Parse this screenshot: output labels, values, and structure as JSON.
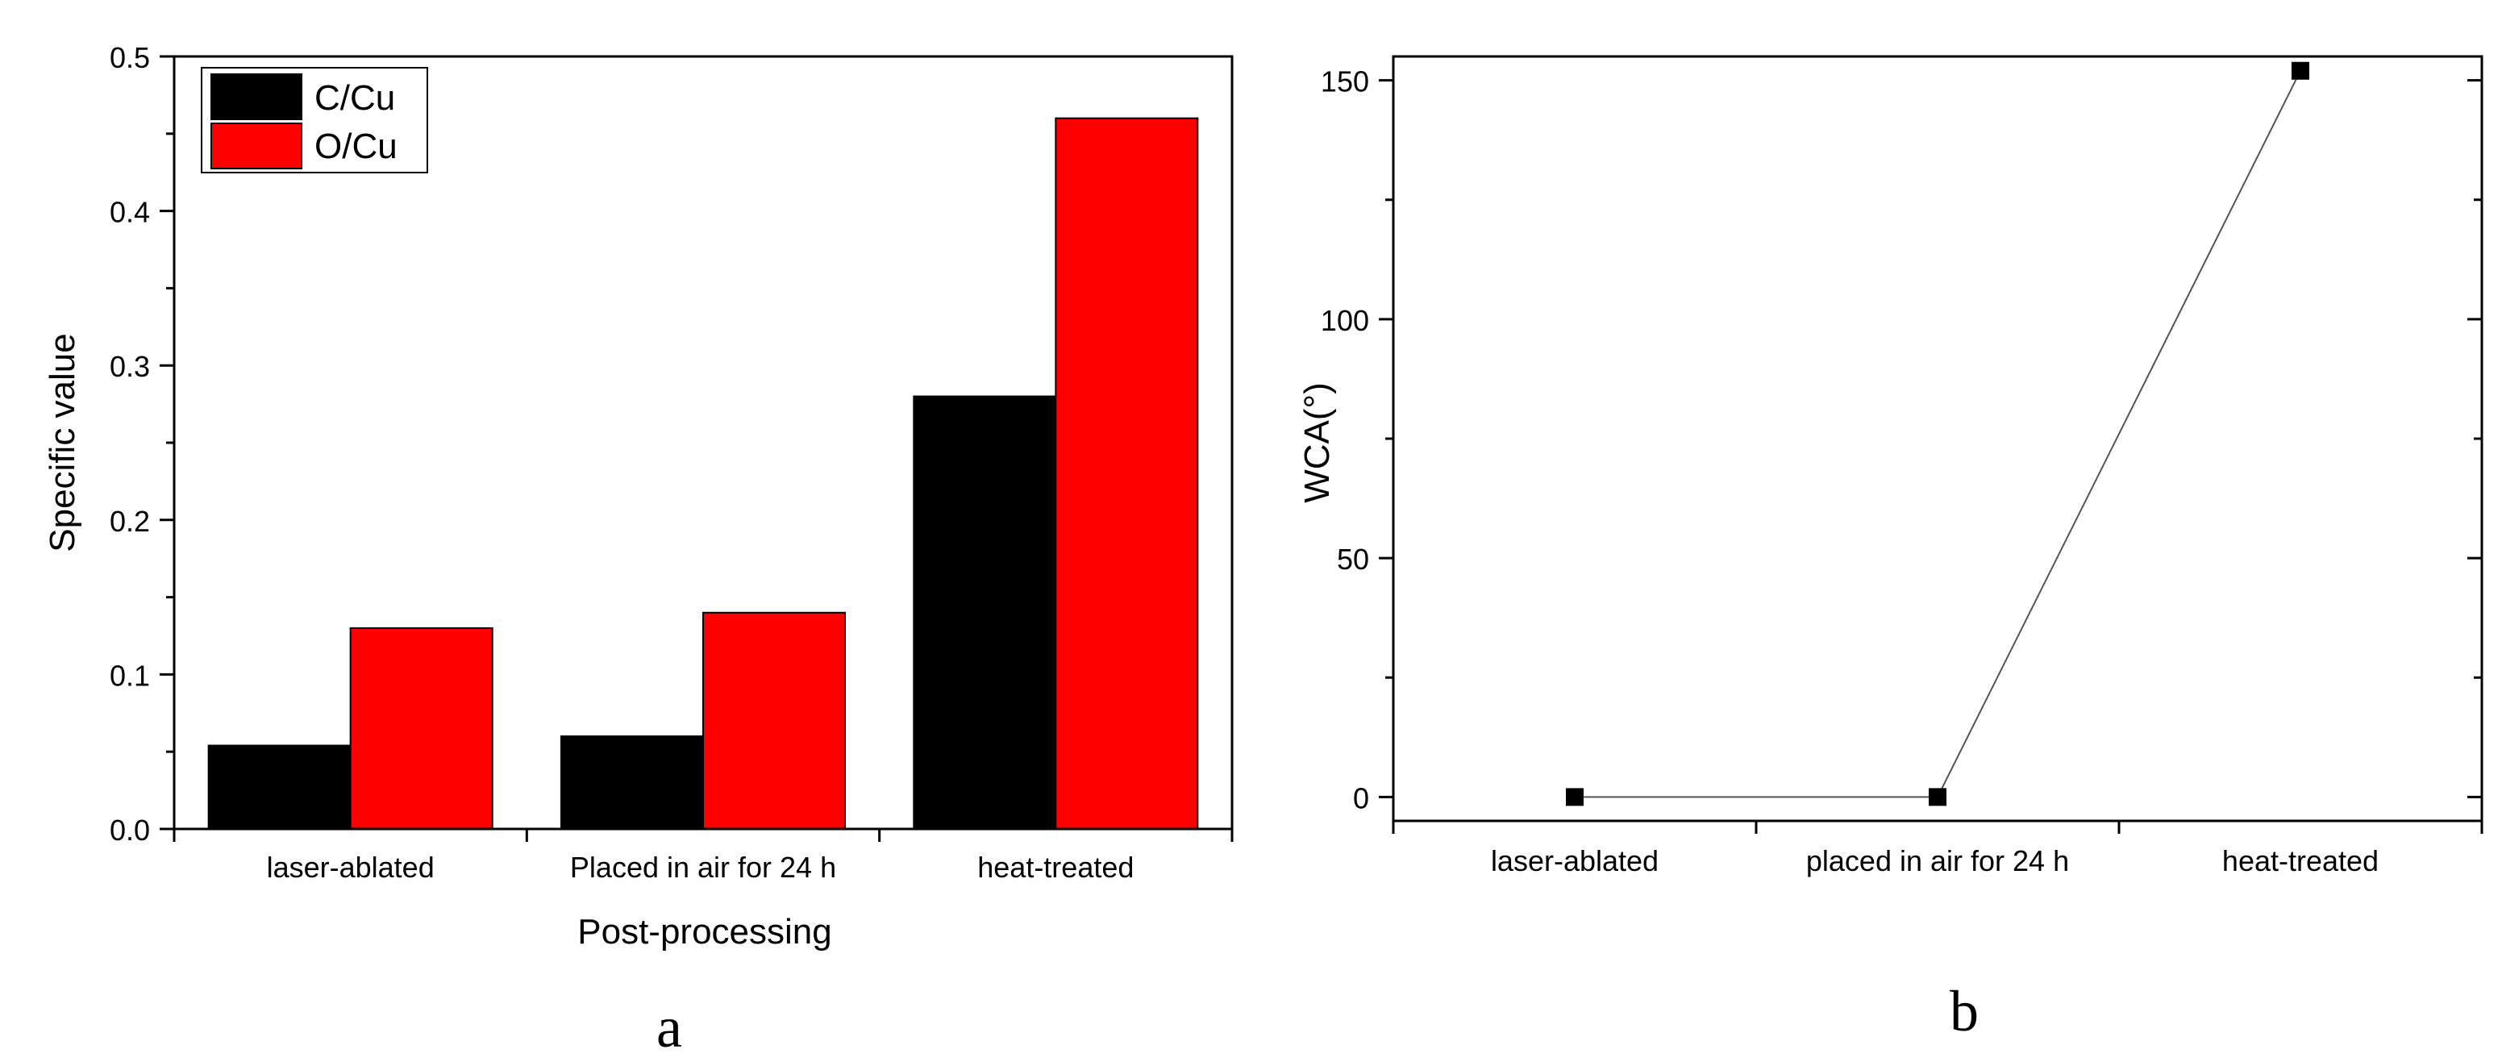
{
  "figure": {
    "colors": {
      "black": "#000000",
      "red": "#ff0000",
      "axis": "#000000",
      "line": "#555555"
    }
  },
  "chart_data": [
    {
      "type": "bar",
      "panel_label": "a",
      "title": "",
      "xlabel": "Post-processing",
      "ylabel": "Specific value",
      "categories": [
        "laser-ablated",
        "Placed in air for 24 h",
        "heat-treated"
      ],
      "series": [
        {
          "name": "C/Cu",
          "color": "#000000",
          "values": [
            0.054,
            0.06,
            0.28
          ]
        },
        {
          "name": "O/Cu",
          "color": "#ff0000",
          "values": [
            0.13,
            0.14,
            0.46
          ]
        }
      ],
      "ylim": [
        0,
        0.5
      ],
      "yticks": [
        0.0,
        0.1,
        0.2,
        0.3,
        0.4,
        0.5
      ],
      "ytick_labels": [
        "0.0",
        "0.1",
        "0.2",
        "0.3",
        "0.4",
        "0.5"
      ],
      "legend": "top-left"
    },
    {
      "type": "line",
      "panel_label": "b",
      "title": "",
      "xlabel": "",
      "ylabel": "WCA(°)",
      "categories": [
        "laser-ablated",
        "placed in air for 24 h",
        "heat-treated"
      ],
      "series": [
        {
          "name": "WCA",
          "color": "#000000",
          "values": [
            0,
            0,
            152
          ]
        }
      ],
      "ylim": [
        -5,
        155
      ],
      "yticks": [
        0,
        50,
        100,
        150
      ],
      "ytick_labels": [
        "0",
        "50",
        "100",
        "150"
      ],
      "marker": "square"
    }
  ]
}
